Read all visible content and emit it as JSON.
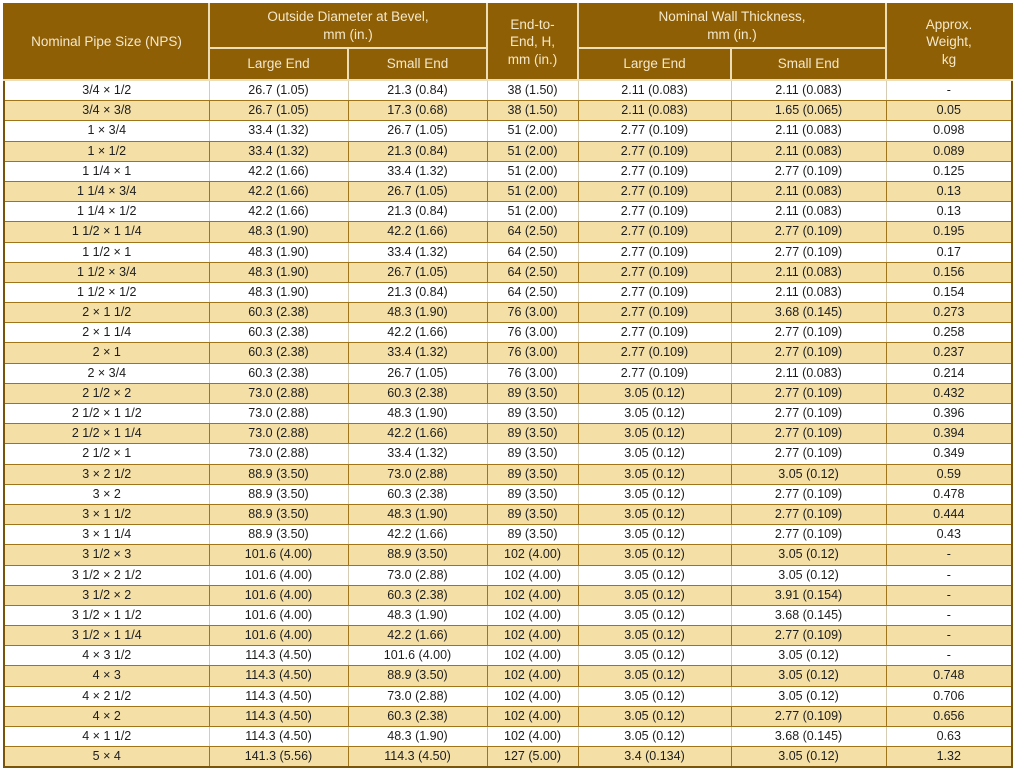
{
  "table": {
    "headers": {
      "nps": "Nominal Pipe Size (NPS)",
      "od_group": "Outside Diameter at Bevel,\nmm (in.)",
      "end_to_end": "End-to-\nEnd, H,\nmm (in.)",
      "wall_group": "Nominal Wall Thickness,\nmm (in.)",
      "weight": "Approx.\nWeight,\nkg",
      "large_end": "Large End",
      "small_end": "Small End"
    },
    "column_ids": [
      "nps",
      "od-large-end",
      "od-small-end",
      "end-to-end",
      "wall-large-end",
      "wall-small-end",
      "weight"
    ],
    "rows": [
      [
        "3/4 × 1/2",
        "26.7 (1.05)",
        "21.3 (0.84)",
        "38 (1.50)",
        "2.11 (0.083)",
        "2.11 (0.083)",
        "-"
      ],
      [
        "3/4 × 3/8",
        "26.7 (1.05)",
        "17.3 (0.68)",
        "38 (1.50)",
        "2.11 (0.083)",
        "1.65 (0.065)",
        "0.05"
      ],
      [
        "1 × 3/4",
        "33.4 (1.32)",
        "26.7 (1.05)",
        "51 (2.00)",
        "2.77 (0.109)",
        "2.11 (0.083)",
        "0.098"
      ],
      [
        "1 × 1/2",
        "33.4 (1.32)",
        "21.3 (0.84)",
        "51 (2.00)",
        "2.77 (0.109)",
        "2.11 (0.083)",
        "0.089"
      ],
      [
        "1 1/4 × 1",
        "42.2 (1.66)",
        "33.4 (1.32)",
        "51 (2.00)",
        "2.77 (0.109)",
        "2.77 (0.109)",
        "0.125"
      ],
      [
        "1 1/4 × 3/4",
        "42.2 (1.66)",
        "26.7 (1.05)",
        "51 (2.00)",
        "2.77 (0.109)",
        "2.11 (0.083)",
        "0.13"
      ],
      [
        "1 1/4 × 1/2",
        "42.2 (1.66)",
        "21.3 (0.84)",
        "51 (2.00)",
        "2.77 (0.109)",
        "2.11 (0.083)",
        "0.13"
      ],
      [
        "1 1/2 × 1 1/4",
        "48.3 (1.90)",
        "42.2 (1.66)",
        "64 (2.50)",
        "2.77 (0.109)",
        "2.77 (0.109)",
        "0.195"
      ],
      [
        "1 1/2 × 1",
        "48.3 (1.90)",
        "33.4 (1.32)",
        "64 (2.50)",
        "2.77 (0.109)",
        "2.77 (0.109)",
        "0.17"
      ],
      [
        "1 1/2 × 3/4",
        "48.3 (1.90)",
        "26.7 (1.05)",
        "64 (2.50)",
        "2.77 (0.109)",
        "2.11 (0.083)",
        "0.156"
      ],
      [
        "1 1/2 × 1/2",
        "48.3 (1.90)",
        "21.3 (0.84)",
        "64 (2.50)",
        "2.77 (0.109)",
        "2.11 (0.083)",
        "0.154"
      ],
      [
        "2 × 1 1/2",
        "60.3 (2.38)",
        "48.3 (1.90)",
        "76 (3.00)",
        "2.77 (0.109)",
        "3.68 (0.145)",
        "0.273"
      ],
      [
        "2 × 1 1/4",
        "60.3 (2.38)",
        "42.2 (1.66)",
        "76 (3.00)",
        "2.77 (0.109)",
        "2.77 (0.109)",
        "0.258"
      ],
      [
        "2 × 1",
        "60.3 (2.38)",
        "33.4 (1.32)",
        "76 (3.00)",
        "2.77 (0.109)",
        "2.77 (0.109)",
        "0.237"
      ],
      [
        "2 × 3/4",
        "60.3 (2.38)",
        "26.7 (1.05)",
        "76 (3.00)",
        "2.77 (0.109)",
        "2.11 (0.083)",
        "0.214"
      ],
      [
        "2 1/2 × 2",
        "73.0 (2.88)",
        "60.3 (2.38)",
        "89 (3.50)",
        "3.05 (0.12)",
        "2.77 (0.109)",
        "0.432"
      ],
      [
        "2 1/2 × 1 1/2",
        "73.0 (2.88)",
        "48.3 (1.90)",
        "89 (3.50)",
        "3.05 (0.12)",
        "2.77 (0.109)",
        "0.396"
      ],
      [
        "2 1/2 × 1 1/4",
        "73.0 (2.88)",
        "42.2 (1.66)",
        "89 (3.50)",
        "3.05 (0.12)",
        "2.77 (0.109)",
        "0.394"
      ],
      [
        "2 1/2 × 1",
        "73.0 (2.88)",
        "33.4 (1.32)",
        "89 (3.50)",
        "3.05 (0.12)",
        "2.77 (0.109)",
        "0.349"
      ],
      [
        "3 × 2 1/2",
        "88.9 (3.50)",
        "73.0 (2.88)",
        "89 (3.50)",
        "3.05 (0.12)",
        "3.05 (0.12)",
        "0.59"
      ],
      [
        "3 × 2",
        "88.9 (3.50)",
        "60.3 (2.38)",
        "89 (3.50)",
        "3.05 (0.12)",
        "2.77 (0.109)",
        "0.478"
      ],
      [
        "3 × 1 1/2",
        "88.9 (3.50)",
        "48.3 (1.90)",
        "89 (3.50)",
        "3.05 (0.12)",
        "2.77 (0.109)",
        "0.444"
      ],
      [
        "3 × 1 1/4",
        "88.9 (3.50)",
        "42.2 (1.66)",
        "89 (3.50)",
        "3.05 (0.12)",
        "2.77 (0.109)",
        "0.43"
      ],
      [
        "3 1/2 × 3",
        "101.6 (4.00)",
        "88.9 (3.50)",
        "102 (4.00)",
        "3.05 (0.12)",
        "3.05 (0.12)",
        "-"
      ],
      [
        "3 1/2 × 2 1/2",
        "101.6 (4.00)",
        "73.0 (2.88)",
        "102 (4.00)",
        "3.05 (0.12)",
        "3.05 (0.12)",
        "-"
      ],
      [
        "3 1/2 × 2",
        "101.6 (4.00)",
        "60.3 (2.38)",
        "102 (4.00)",
        "3.05 (0.12)",
        "3.91 (0.154)",
        "-"
      ],
      [
        "3 1/2 × 1 1/2",
        "101.6 (4.00)",
        "48.3 (1.90)",
        "102 (4.00)",
        "3.05 (0.12)",
        "3.68 (0.145)",
        "-"
      ],
      [
        "3 1/2 × 1 1/4",
        "101.6 (4.00)",
        "42.2 (1.66)",
        "102 (4.00)",
        "3.05 (0.12)",
        "2.77 (0.109)",
        "-"
      ],
      [
        "4 × 3 1/2",
        "114.3 (4.50)",
        "101.6 (4.00)",
        "102 (4.00)",
        "3.05 (0.12)",
        "3.05 (0.12)",
        "-"
      ],
      [
        "4 × 3",
        "114.3 (4.50)",
        "88.9 (3.50)",
        "102 (4.00)",
        "3.05 (0.12)",
        "3.05 (0.12)",
        "0.748"
      ],
      [
        "4 × 2 1/2",
        "114.3 (4.50)",
        "73.0 (2.88)",
        "102 (4.00)",
        "3.05 (0.12)",
        "3.05 (0.12)",
        "0.706"
      ],
      [
        "4 × 2",
        "114.3 (4.50)",
        "60.3 (2.38)",
        "102 (4.00)",
        "3.05 (0.12)",
        "2.77 (0.109)",
        "0.656"
      ],
      [
        "4 × 1 1/2",
        "114.3 (4.50)",
        "48.3 (1.90)",
        "102 (4.00)",
        "3.05 (0.12)",
        "3.68 (0.145)",
        "0.63"
      ],
      [
        "5 × 4",
        "141.3 (5.56)",
        "114.3 (4.50)",
        "127 (5.00)",
        "3.4 (0.134)",
        "3.05 (0.12)",
        "1.32"
      ]
    ]
  },
  "colors": {
    "header_bg": "#8F5F05",
    "header_text": "#F4E8CB",
    "header_divider": "#EDDEB7",
    "row_alt_bg": "#F4DFA6",
    "grid_line": "#A0751A",
    "outer_border": "#7A5407",
    "body_text": "#1D1D1D"
  }
}
